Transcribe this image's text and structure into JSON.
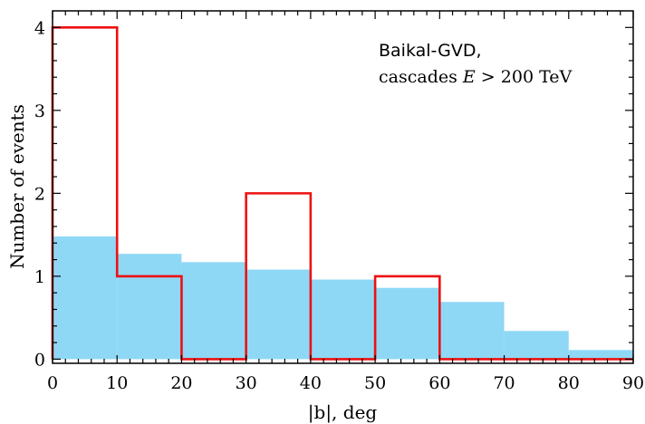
{
  "chart_data": {
    "type": "bar",
    "xlabel": "|b|, deg",
    "ylabel": "Number of events",
    "xlim": [
      0,
      90
    ],
    "ylim": [
      -0.05,
      4.2
    ],
    "x_ticks": [
      0,
      10,
      20,
      30,
      40,
      50,
      60,
      70,
      80,
      90
    ],
    "y_ticks": [
      0,
      1,
      2,
      3,
      4
    ],
    "bin_edges": [
      0,
      10,
      20,
      30,
      40,
      50,
      60,
      70,
      80,
      90
    ],
    "series": [
      {
        "kind": "filled-histogram",
        "color": "#8fd8f5",
        "values": [
          1.48,
          1.27,
          1.17,
          1.08,
          0.96,
          0.86,
          0.69,
          0.34,
          0.11
        ]
      },
      {
        "kind": "step-histogram",
        "color": "#ee1111",
        "values": [
          4,
          1,
          0,
          2,
          0,
          1,
          0,
          0,
          0
        ]
      }
    ],
    "annotation": {
      "line1": "Baikal-GVD,",
      "line2_prefix": "cascades ",
      "line2_var": "E",
      "line2_suffix": " > 200 TeV"
    },
    "grid": false
  }
}
